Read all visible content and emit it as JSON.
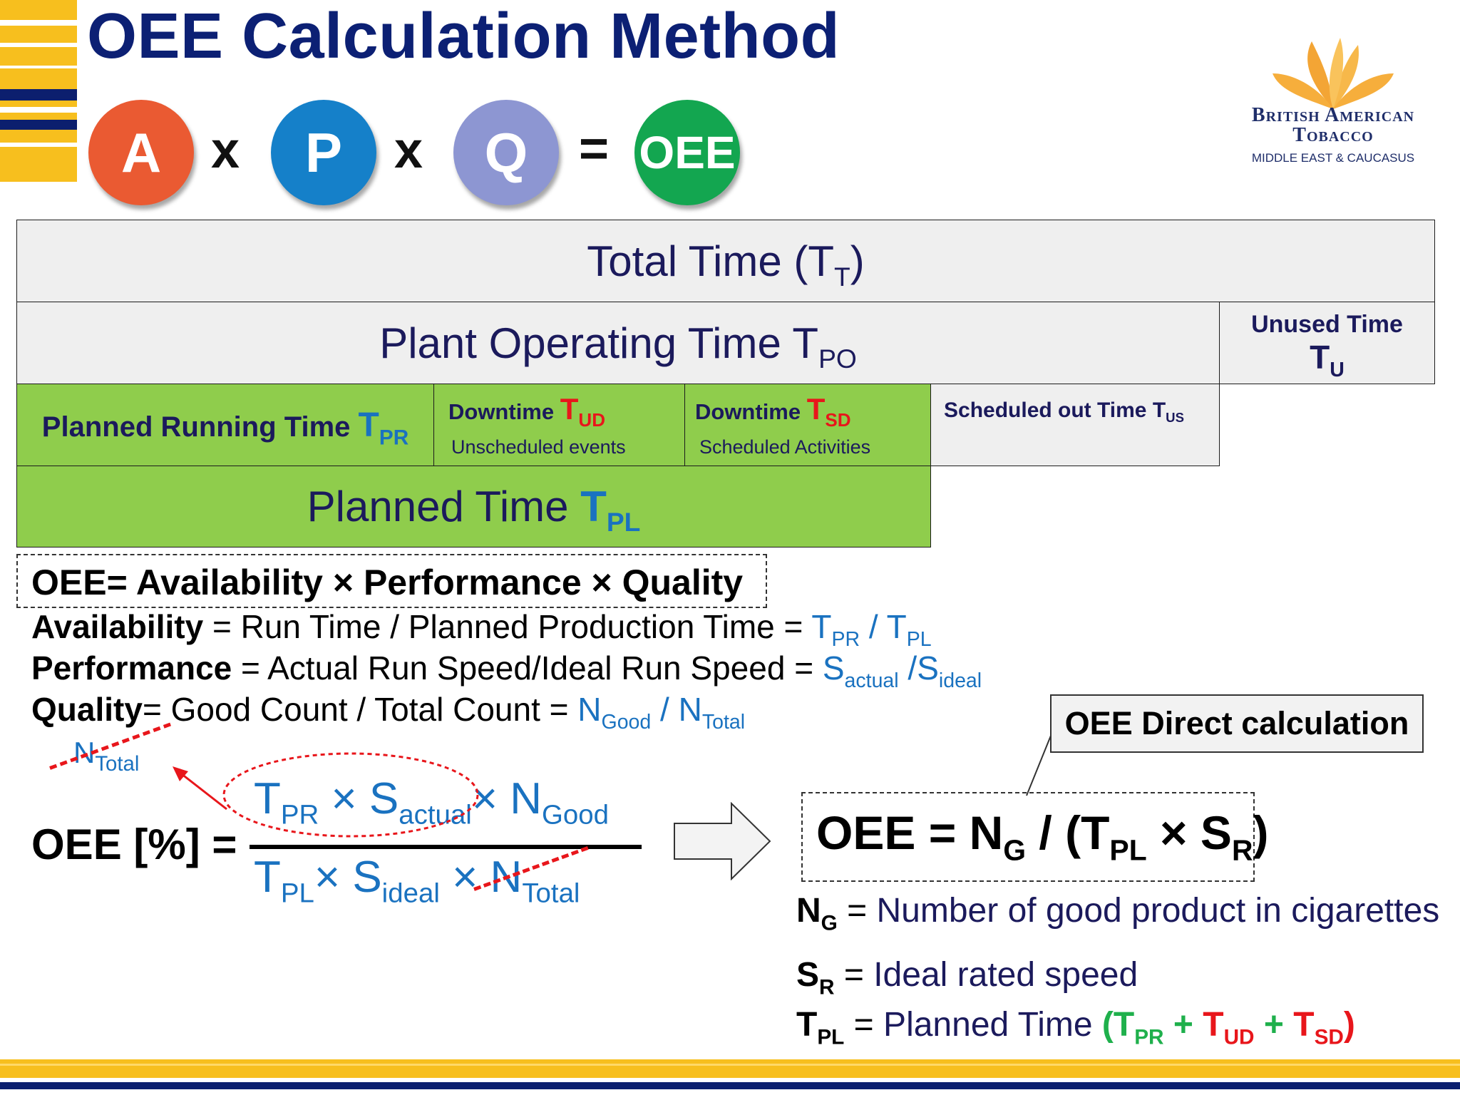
{
  "header": {
    "title": "OEE Calculation Method",
    "formula_icons": [
      {
        "label": "A",
        "color": "#ea5a32"
      },
      {
        "label": "P",
        "color": "#1580c9"
      },
      {
        "label": "Q",
        "color": "#8d96d2"
      },
      {
        "label": "OEE",
        "color": "#13a650"
      }
    ],
    "times_symbol": "x",
    "equals_symbol": "=",
    "logo": {
      "line1": "British American",
      "line2": "Tobacco",
      "line3": "MIDDLE EAST & CAUCASUS"
    }
  },
  "time_table": {
    "total_time": {
      "label": "Total Time (T",
      "sub": "T",
      "close": ")"
    },
    "plant_operating": {
      "label": "Plant Operating Time T",
      "sub": "PO"
    },
    "unused": {
      "label": "Unused Time",
      "symbol": "T",
      "sub": "U"
    },
    "planned_running": {
      "label": "Planned Running Time ",
      "symbol": "T",
      "sub": "PR"
    },
    "downtime_ud": {
      "label": "Downtime ",
      "symbol": "T",
      "sub": "UD",
      "caption": "Unscheduled events"
    },
    "downtime_sd": {
      "label": "Downtime ",
      "symbol": "T",
      "sub": "SD",
      "caption": "Scheduled Activities"
    },
    "scheduled_out": {
      "label": "Scheduled out Time T",
      "sub": "US"
    },
    "planned_time": {
      "label": "Planned Time ",
      "symbol": "T",
      "sub": "PL"
    }
  },
  "formulas": {
    "oee_main": "OEE= Availability ×  Performance ×  Quality",
    "availability": {
      "term": "Availability",
      "text": " = Run Time / Planned Production Time = ",
      "n1": "T",
      "s1": "PR",
      "sep": " / ",
      "n2": "T",
      "s2": "PL"
    },
    "performance": {
      "term": "Performance",
      "text": " = Actual Run Speed/Ideal Run Speed = ",
      "n1": "S",
      "s1": "actual",
      "sep": " /",
      "n2": "S",
      "s2": "ideal"
    },
    "quality": {
      "term": "Quality",
      "text": "= Good Count / Total Count = ",
      "n1": "N",
      "s1": "Good",
      "sep": " / ",
      "n2": "N",
      "s2": "Total"
    }
  },
  "fraction": {
    "lhs": "OEE [%] =",
    "annot_n": "N",
    "annot_sub": "Total",
    "num": {
      "t": "T",
      "t_sub": "PR",
      "x1": " × ",
      "s": "S",
      "s_sub": "actual",
      "x2": "× ",
      "n": "N",
      "n_sub": "Good"
    },
    "den": {
      "t": "T",
      "t_sub": "PL",
      "x1": "× ",
      "s": "S",
      "s_sub": "ideal",
      "x2": " ×  ",
      "n": "N",
      "n_sub": "Total"
    }
  },
  "direct": {
    "callout": "OEE Direct calculation",
    "formula": {
      "a": "OEE = N",
      "a_sub": "G",
      "b": " / (T",
      "b_sub": "PL",
      "c": " × S",
      "c_sub": "R",
      "d": ")"
    },
    "defs": [
      {
        "sym": "N",
        "sub": "G",
        "eq": " =  ",
        "text": "Number of good product in cigarettes"
      },
      {
        "sym": "S",
        "sub": "R",
        "eq": "  =  ",
        "text": "Ideal rated speed"
      },
      {
        "sym": "T",
        "sub": "PL",
        "eq": " = ",
        "text": "Planned Time "
      }
    ],
    "tpl_breakdown": {
      "open": "(",
      "t1": "T",
      "s1": "PR",
      "plus1": " + ",
      "t2": "T",
      "s2": "UD",
      "plus2": " + ",
      "t3": "T",
      "s3": "SD",
      "close": ")"
    }
  },
  "colors": {
    "title": "#0c2074",
    "grey_cell": "#efefef",
    "green_cell": "#8fcd4c",
    "accent_blue": "#1a72c0",
    "accent_red": "#e8161b",
    "accent_green": "#1fb04c",
    "stripe_gold": "#f7bf1e",
    "stripe_navy": "#0c1f6e"
  }
}
